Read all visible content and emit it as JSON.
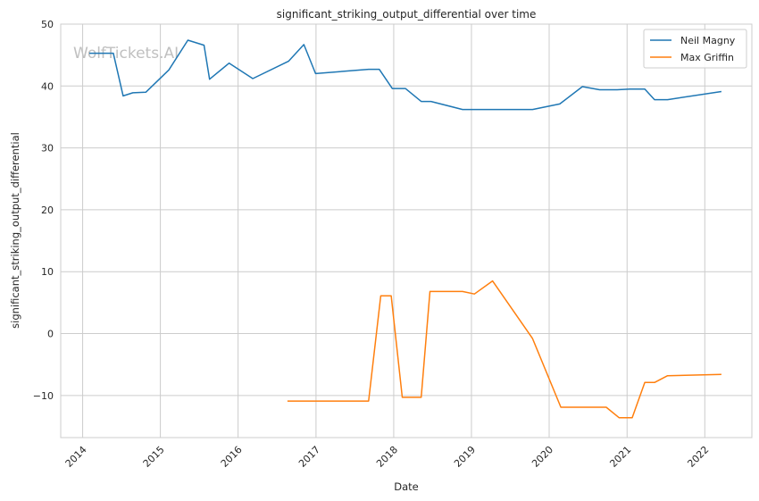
{
  "chart_data": {
    "type": "line",
    "title": "significant_striking_output_differential over time",
    "xlabel": "Date",
    "ylabel": "significant_striking_output_differential",
    "watermark": "WolfTickets.AI",
    "x_ticks": [
      "2014",
      "2015",
      "2016",
      "2017",
      "2018",
      "2019",
      "2020",
      "2021",
      "2022"
    ],
    "y_ticks": [
      50,
      40,
      30,
      20,
      10,
      0,
      -10
    ],
    "xlim": [
      "2013-09-20",
      "2022-08-10"
    ],
    "ylim": [
      -16.8,
      50
    ],
    "grid": true,
    "legend_position": "top-right",
    "series": [
      {
        "name": "Neil Magny",
        "color": "#1f77b4",
        "points": [
          [
            "2014-02-01",
            45.3
          ],
          [
            "2014-03-25",
            45.3
          ],
          [
            "2014-05-25",
            45.3
          ],
          [
            "2014-07-10",
            38.4
          ],
          [
            "2014-08-25",
            38.9
          ],
          [
            "2014-10-25",
            39.0
          ],
          [
            "2015-02-10",
            42.6
          ],
          [
            "2015-05-10",
            47.4
          ],
          [
            "2015-07-25",
            46.6
          ],
          [
            "2015-08-20",
            41.1
          ],
          [
            "2015-11-20",
            43.7
          ],
          [
            "2016-03-10",
            41.2
          ],
          [
            "2016-08-25",
            44.0
          ],
          [
            "2016-11-05",
            46.7
          ],
          [
            "2016-12-30",
            42.0
          ],
          [
            "2017-09-05",
            42.7
          ],
          [
            "2017-10-25",
            42.7
          ],
          [
            "2017-12-25",
            39.6
          ],
          [
            "2018-02-25",
            39.6
          ],
          [
            "2018-05-10",
            37.5
          ],
          [
            "2018-06-25",
            37.5
          ],
          [
            "2018-11-20",
            36.2
          ],
          [
            "2019-02-20",
            36.2
          ],
          [
            "2019-10-15",
            36.2
          ],
          [
            "2020-02-20",
            37.1
          ],
          [
            "2020-06-05",
            39.9
          ],
          [
            "2020-08-25",
            39.4
          ],
          [
            "2020-11-15",
            39.4
          ],
          [
            "2021-01-15",
            39.5
          ],
          [
            "2021-03-25",
            39.5
          ],
          [
            "2021-05-10",
            37.8
          ],
          [
            "2021-07-10",
            37.8
          ],
          [
            "2022-03-20",
            39.1
          ]
        ]
      },
      {
        "name": "Max Griffin",
        "color": "#ff7f0e",
        "points": [
          [
            "2016-08-20",
            -10.9
          ],
          [
            "2017-09-05",
            -10.9
          ],
          [
            "2017-11-01",
            6.1
          ],
          [
            "2017-12-20",
            6.1
          ],
          [
            "2018-02-10",
            -10.3
          ],
          [
            "2018-05-10",
            -10.3
          ],
          [
            "2018-06-20",
            6.8
          ],
          [
            "2018-11-20",
            6.8
          ],
          [
            "2019-01-15",
            6.4
          ],
          [
            "2019-04-10",
            8.5
          ],
          [
            "2019-10-15",
            -0.8
          ],
          [
            "2020-02-25",
            -11.9
          ],
          [
            "2020-09-25",
            -11.9
          ],
          [
            "2020-11-25",
            -13.6
          ],
          [
            "2021-01-25",
            -13.6
          ],
          [
            "2021-03-25",
            -7.9
          ],
          [
            "2021-05-10",
            -7.9
          ],
          [
            "2021-07-10",
            -6.8
          ],
          [
            "2022-03-20",
            -6.6
          ]
        ]
      }
    ]
  }
}
